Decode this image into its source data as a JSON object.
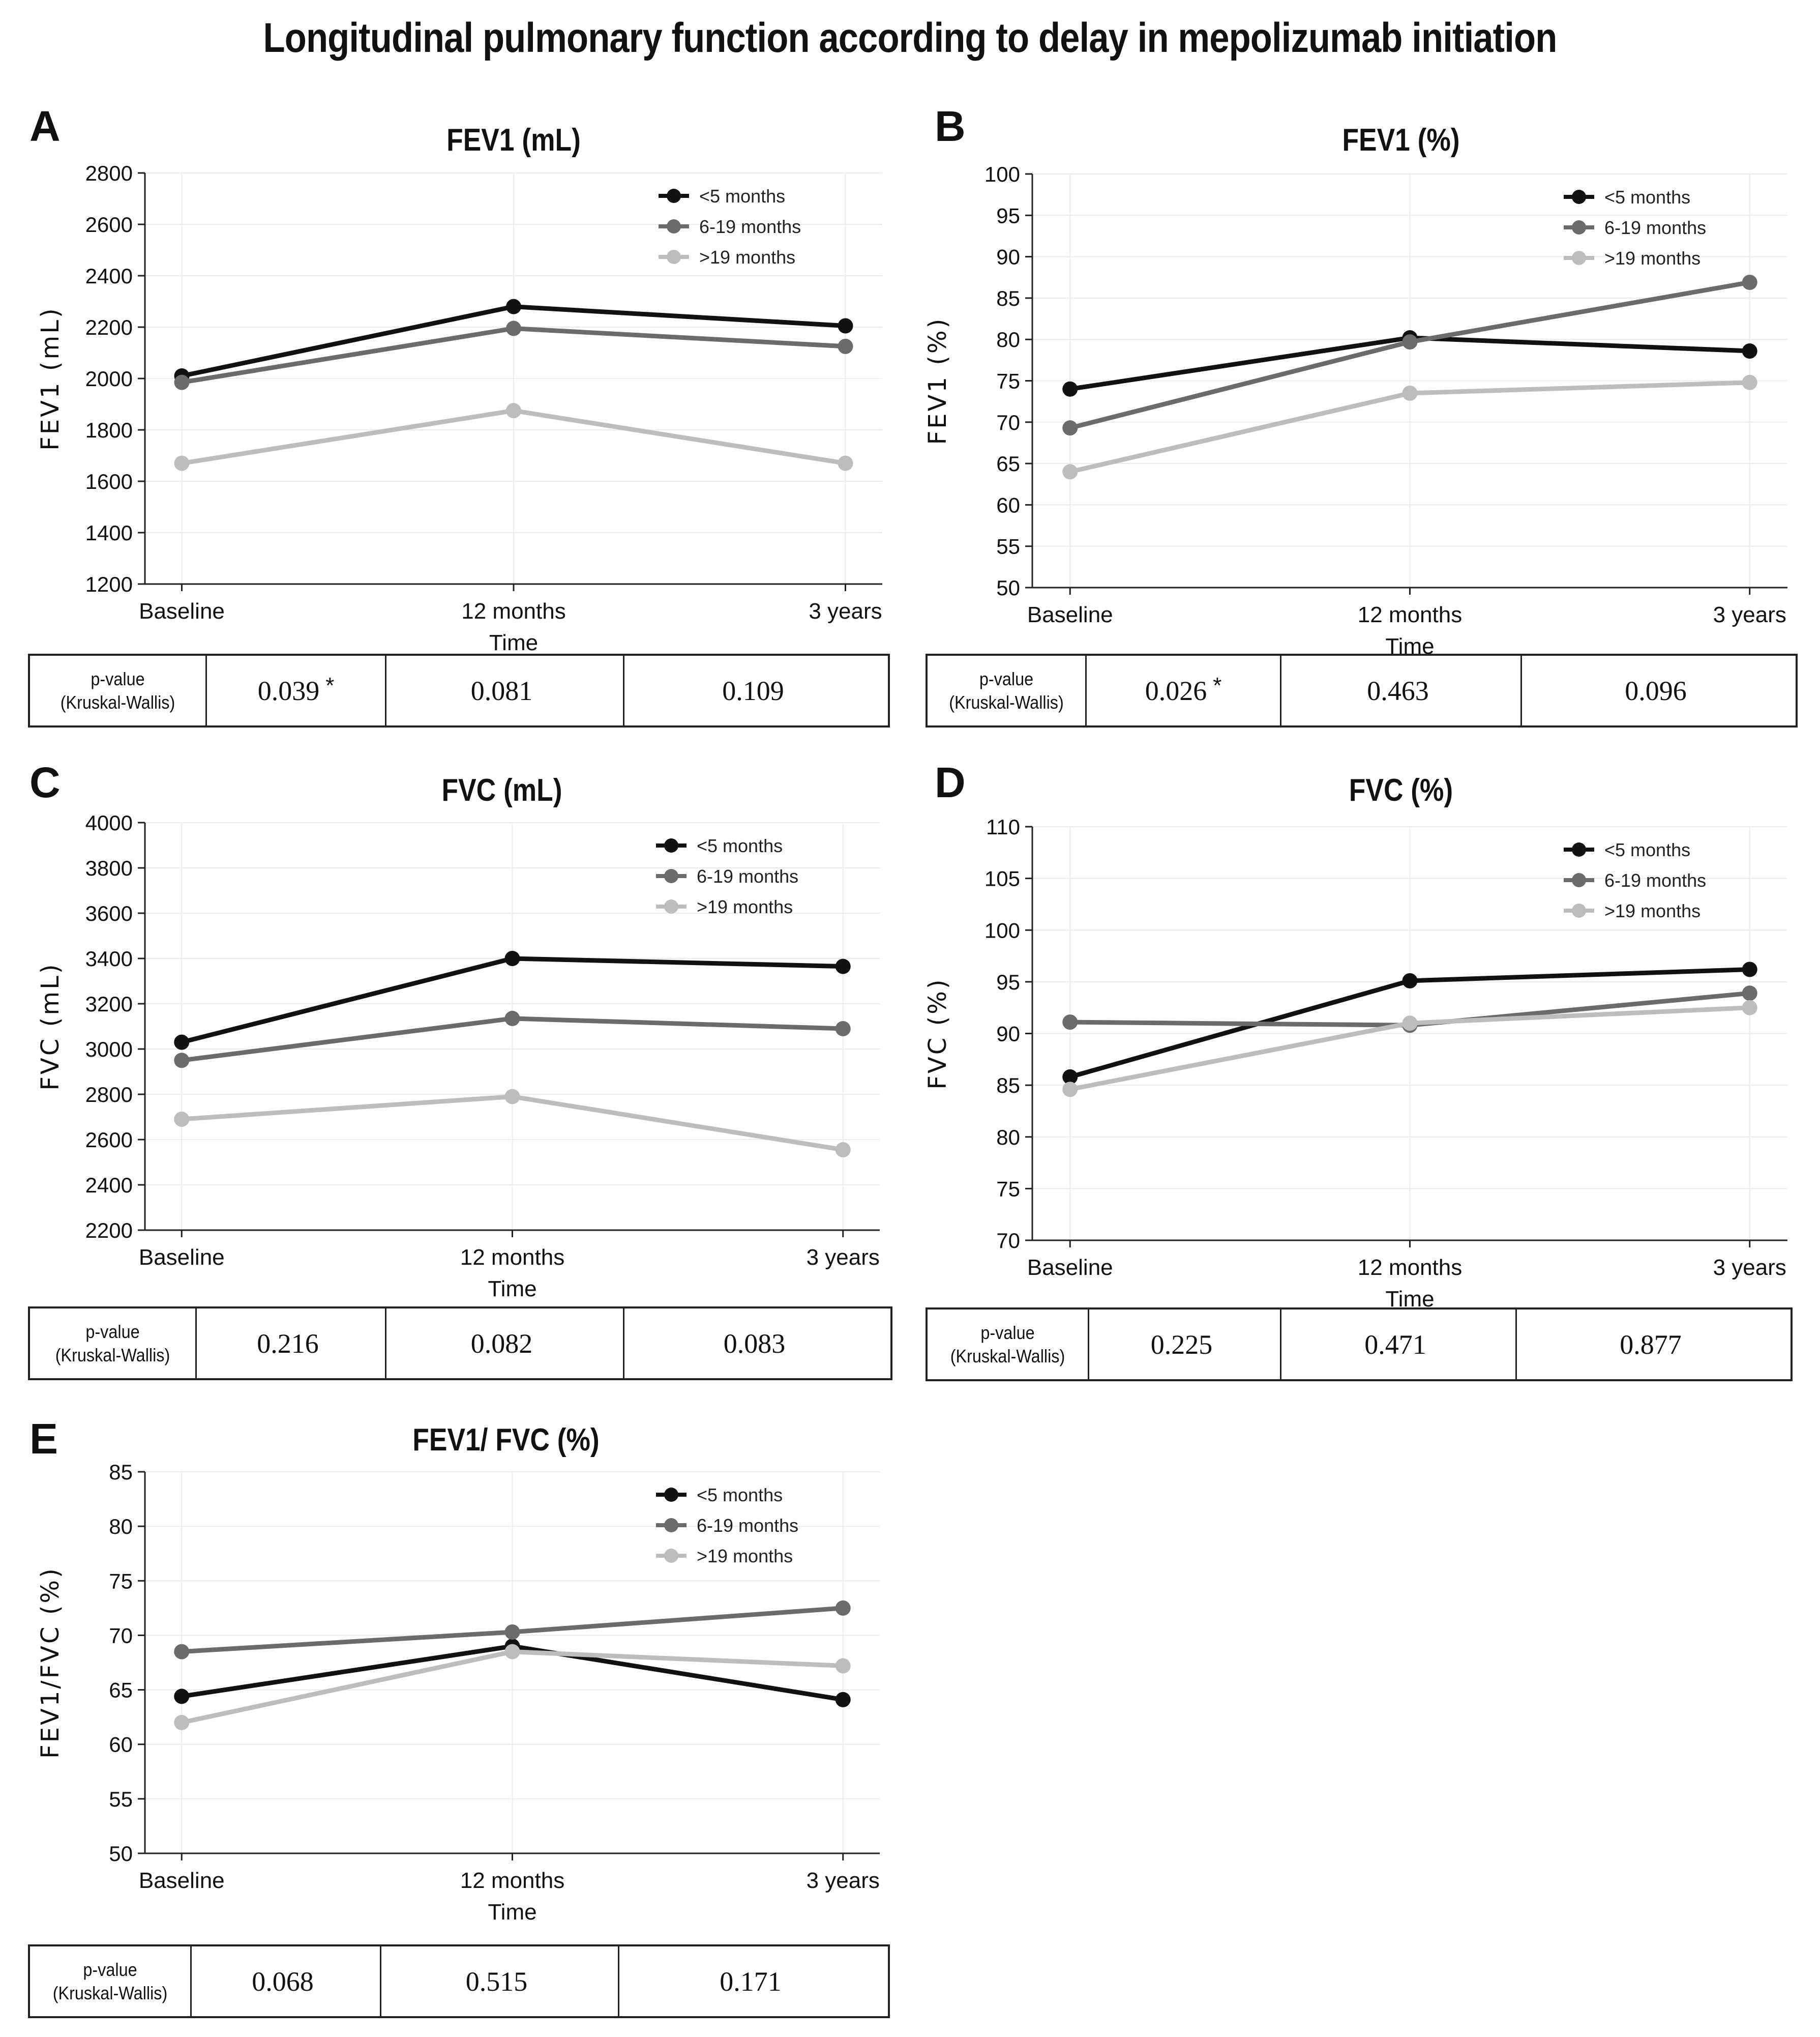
{
  "title": "Longitudinal pulmonary function according to delay in mepolizumab initiation",
  "legend": [
    "<5 months",
    "6-19 months",
    ">19 months"
  ],
  "colors": [
    "#111111",
    "#6b6b6b",
    "#bdbdbd"
  ],
  "pvalue_label": [
    "p-value",
    "(Kruskal-Wallis)"
  ],
  "panels": [
    {
      "letter": "A",
      "title": "FEV1 (mL)",
      "pvalues": [
        {
          "v": "0.039",
          "sig": "*"
        },
        {
          "v": "0.081",
          "sig": ""
        },
        {
          "v": "0.109",
          "sig": ""
        }
      ]
    },
    {
      "letter": "B",
      "title": "FEV1 (%)",
      "pvalues": [
        {
          "v": "0.026",
          "sig": "*"
        },
        {
          "v": "0.463",
          "sig": ""
        },
        {
          "v": "0.096",
          "sig": ""
        }
      ]
    },
    {
      "letter": "C",
      "title": "FVC (mL)",
      "pvalues": [
        {
          "v": "0.216",
          "sig": ""
        },
        {
          "v": "0.082",
          "sig": ""
        },
        {
          "v": "0.083",
          "sig": ""
        }
      ]
    },
    {
      "letter": "D",
      "title": "FVC (%)",
      "pvalues": [
        {
          "v": "0.225",
          "sig": ""
        },
        {
          "v": "0.471",
          "sig": ""
        },
        {
          "v": "0.877",
          "sig": ""
        }
      ]
    },
    {
      "letter": "E",
      "title": "FEV1/ FVC (%)",
      "pvalues": [
        {
          "v": "0.068",
          "sig": ""
        },
        {
          "v": "0.515",
          "sig": ""
        },
        {
          "v": "0.171",
          "sig": ""
        }
      ]
    }
  ],
  "chart_data": [
    {
      "type": "line",
      "title": "FEV1 (mL)",
      "xlabel": "Time",
      "ylabel": "FEV1 (mL)",
      "categories": [
        "Baseline",
        "12 months",
        "3 years"
      ],
      "ylim": [
        1200,
        2800
      ],
      "yticks": [
        1200,
        1400,
        1600,
        1800,
        2000,
        2200,
        2400,
        2600,
        2800
      ],
      "grid": true,
      "legend_position": "top-right",
      "series": [
        {
          "name": "<5 months",
          "values": [
            2010,
            2280,
            2205
          ]
        },
        {
          "name": "6-19 months",
          "values": [
            1985,
            2195,
            2125
          ]
        },
        {
          "name": ">19 months",
          "values": [
            1670,
            1875,
            1670
          ]
        }
      ]
    },
    {
      "type": "line",
      "title": "FEV1 (%)",
      "xlabel": "Time",
      "ylabel": "FEV1 (%)",
      "categories": [
        "Baseline",
        "12 months",
        "3 years"
      ],
      "ylim": [
        50,
        100
      ],
      "yticks": [
        50,
        55,
        60,
        65,
        70,
        75,
        80,
        85,
        90,
        95,
        100
      ],
      "grid": true,
      "legend_position": "top-right",
      "series": [
        {
          "name": "<5 months",
          "values": [
            74,
            80.2,
            78.6
          ]
        },
        {
          "name": "6-19 months",
          "values": [
            69.3,
            79.7,
            86.9
          ]
        },
        {
          "name": ">19 months",
          "values": [
            64,
            73.5,
            74.8
          ]
        }
      ]
    },
    {
      "type": "line",
      "title": "FVC (mL)",
      "xlabel": "Time",
      "ylabel": "FVC (mL)",
      "categories": [
        "Baseline",
        "12 months",
        "3 years"
      ],
      "ylim": [
        2200,
        4000
      ],
      "yticks": [
        2200,
        2400,
        2600,
        2800,
        3000,
        3200,
        3400,
        3600,
        3800,
        4000
      ],
      "grid": true,
      "legend_position": "top-right",
      "series": [
        {
          "name": "<5 months",
          "values": [
            3030,
            3400,
            3365
          ]
        },
        {
          "name": "6-19 months",
          "values": [
            2950,
            3135,
            3090
          ]
        },
        {
          "name": ">19 months",
          "values": [
            2690,
            2790,
            2555
          ]
        }
      ]
    },
    {
      "type": "line",
      "title": "FVC (%)",
      "xlabel": "Time",
      "ylabel": "FVC (%)",
      "categories": [
        "Baseline",
        "12 months",
        "3 years"
      ],
      "ylim": [
        70,
        110
      ],
      "yticks": [
        70,
        75,
        80,
        85,
        90,
        95,
        100,
        105,
        110
      ],
      "grid": true,
      "legend_position": "top-right",
      "series": [
        {
          "name": "<5 months",
          "values": [
            85.8,
            95.1,
            96.2
          ]
        },
        {
          "name": "6-19 months",
          "values": [
            91.1,
            90.8,
            93.9
          ]
        },
        {
          "name": ">19 months",
          "values": [
            84.6,
            91,
            92.5
          ]
        }
      ]
    },
    {
      "type": "line",
      "title": "FEV1/ FVC (%)",
      "xlabel": "Time",
      "ylabel": "FEV1/FVC (%)",
      "categories": [
        "Baseline",
        "12 months",
        "3 years"
      ],
      "ylim": [
        50,
        85
      ],
      "yticks": [
        50,
        55,
        60,
        65,
        70,
        75,
        80,
        85
      ],
      "grid": true,
      "legend_position": "top-right",
      "series": [
        {
          "name": "<5 months",
          "values": [
            64.4,
            69,
            64.1
          ]
        },
        {
          "name": "6-19 months",
          "values": [
            68.5,
            70.3,
            72.5
          ]
        },
        {
          "name": ">19 months",
          "values": [
            62,
            68.5,
            67.2
          ]
        }
      ]
    }
  ]
}
